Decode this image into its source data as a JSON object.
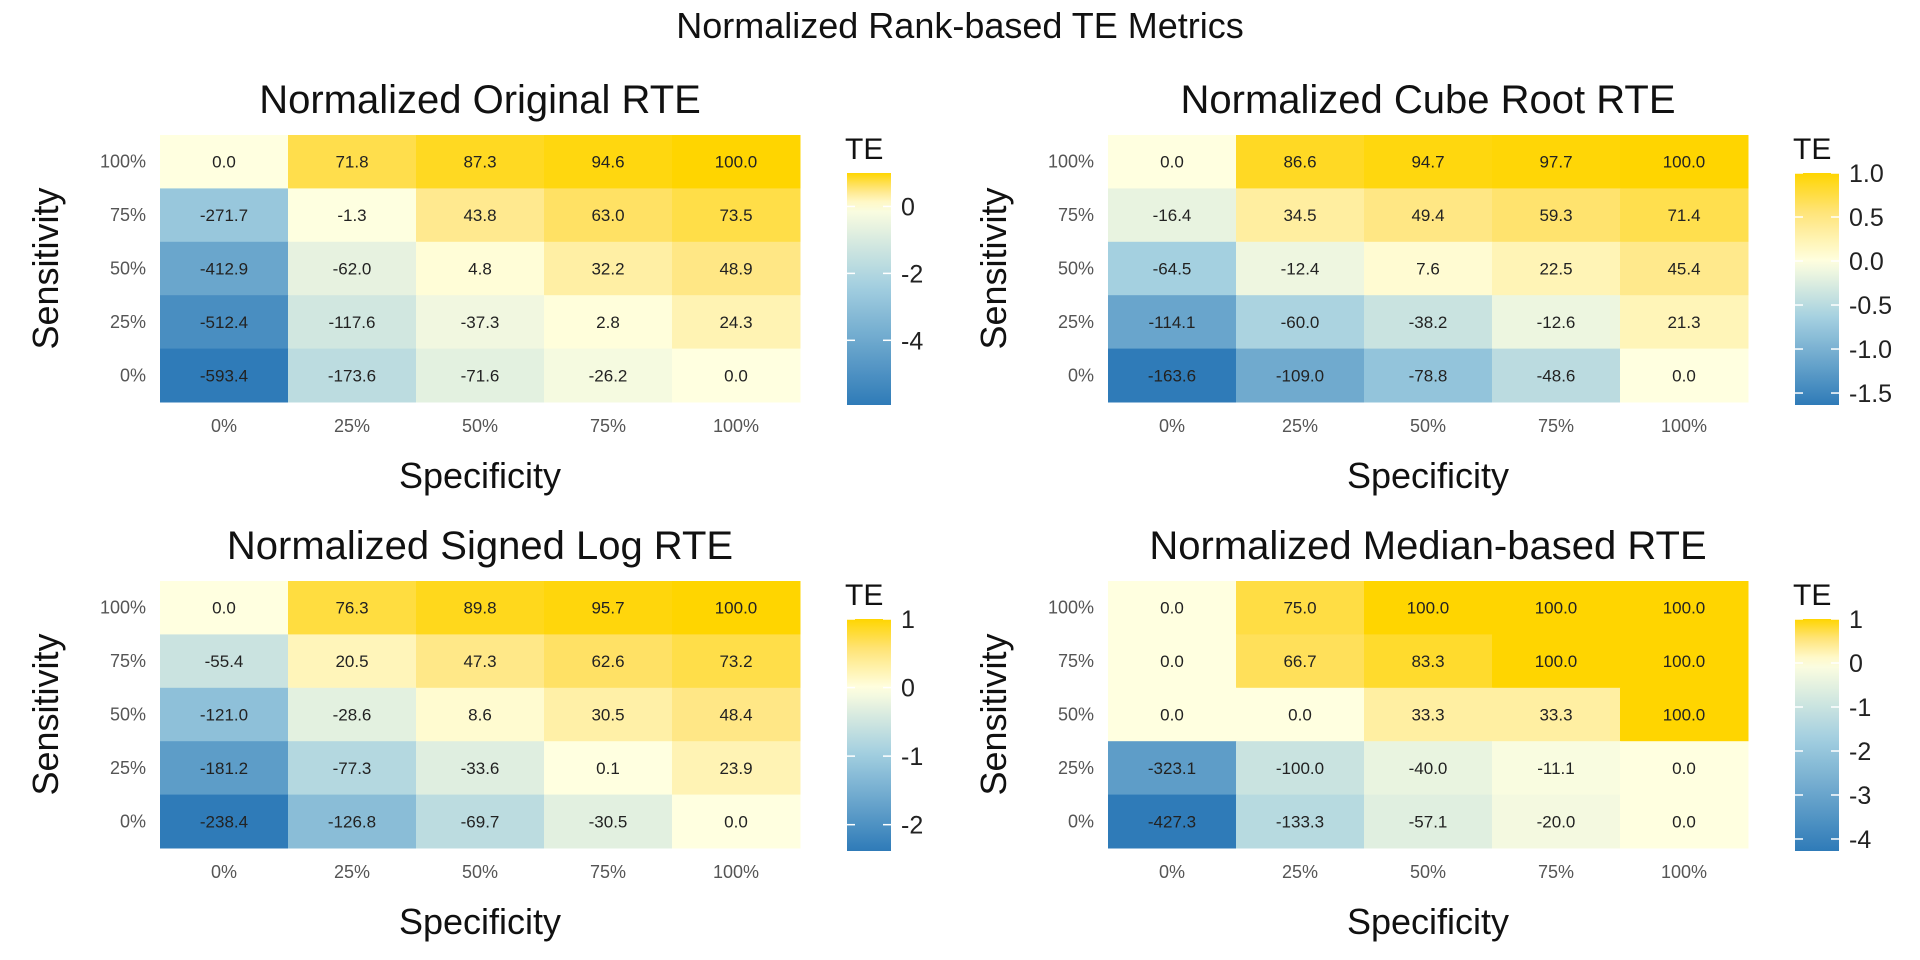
{
  "figure": {
    "title": "Normalized Rank-based TE Metrics"
  },
  "colors": {
    "low": "#2f7bb8",
    "lowmid": "#a3cfe0",
    "mid": "#ffffe0",
    "highmid": "#ffe47a",
    "high": "#ffd500",
    "text": "#222222",
    "tick": "#555555"
  },
  "chart_data": [
    {
      "type": "heatmap",
      "title": "Normalized Original RTE",
      "xlabel": "Specificity",
      "ylabel": "Sensitivity",
      "x_categories": [
        "0%",
        "25%",
        "50%",
        "75%",
        "100%"
      ],
      "y_categories": [
        "100%",
        "75%",
        "50%",
        "25%",
        "0%"
      ],
      "values": [
        [
          0.0,
          71.8,
          87.3,
          94.6,
          100.0
        ],
        [
          -271.7,
          -1.3,
          43.8,
          63.0,
          73.5
        ],
        [
          -412.9,
          -62.0,
          4.8,
          32.2,
          48.9
        ],
        [
          -512.4,
          -117.6,
          -37.3,
          2.8,
          24.3
        ],
        [
          -593.4,
          -173.6,
          -71.6,
          -26.2,
          0.0
        ]
      ],
      "value_labels": [
        [
          "0.0",
          "71.8",
          "87.3",
          "94.6",
          "100.0"
        ],
        [
          "-271.7",
          "-1.3",
          "43.8",
          "63.0",
          "73.5"
        ],
        [
          "-412.9",
          "-62.0",
          "4.8",
          "32.2",
          "48.9"
        ],
        [
          "-512.4",
          "-117.6",
          "-37.3",
          "2.8",
          "24.3"
        ],
        [
          "-593.4",
          "-173.6",
          "-71.6",
          "-26.2",
          "0.0"
        ]
      ],
      "legend": {
        "title": "TE",
        "range": [
          -5.934,
          1.0
        ],
        "ticks": [
          0,
          -2,
          -4
        ],
        "tick_labels": [
          "0",
          "-2",
          "-4"
        ]
      }
    },
    {
      "type": "heatmap",
      "title": "Normalized Cube Root RTE",
      "xlabel": "Specificity",
      "ylabel": "Sensitivity",
      "x_categories": [
        "0%",
        "25%",
        "50%",
        "75%",
        "100%"
      ],
      "y_categories": [
        "100%",
        "75%",
        "50%",
        "25%",
        "0%"
      ],
      "values": [
        [
          0.0,
          86.6,
          94.7,
          97.7,
          100.0
        ],
        [
          -16.4,
          34.5,
          49.4,
          59.3,
          71.4
        ],
        [
          -64.5,
          -12.4,
          7.6,
          22.5,
          45.4
        ],
        [
          -114.1,
          -60.0,
          -38.2,
          -12.6,
          21.3
        ],
        [
          -163.6,
          -109.0,
          -78.8,
          -48.6,
          0.0
        ]
      ],
      "value_labels": [
        [
          "0.0",
          "86.6",
          "94.7",
          "97.7",
          "100.0"
        ],
        [
          "-16.4",
          "34.5",
          "49.4",
          "59.3",
          "71.4"
        ],
        [
          "-64.5",
          "-12.4",
          "7.6",
          "22.5",
          "45.4"
        ],
        [
          "-114.1",
          "-60.0",
          "-38.2",
          "-12.6",
          "21.3"
        ],
        [
          "-163.6",
          "-109.0",
          "-78.8",
          "-48.6",
          "0.0"
        ]
      ],
      "legend": {
        "title": "TE",
        "range": [
          -1.636,
          1.0
        ],
        "ticks": [
          1.0,
          0.5,
          0.0,
          -0.5,
          -1.0,
          -1.5
        ],
        "tick_labels": [
          "1.0",
          "0.5",
          "0.0",
          "-0.5",
          "-1.0",
          "-1.5"
        ]
      }
    },
    {
      "type": "heatmap",
      "title": "Normalized Signed Log RTE",
      "xlabel": "Specificity",
      "ylabel": "Sensitivity",
      "x_categories": [
        "0%",
        "25%",
        "50%",
        "75%",
        "100%"
      ],
      "y_categories": [
        "100%",
        "75%",
        "50%",
        "25%",
        "0%"
      ],
      "values": [
        [
          0.0,
          76.3,
          89.8,
          95.7,
          100.0
        ],
        [
          -55.4,
          20.5,
          47.3,
          62.6,
          73.2
        ],
        [
          -121.0,
          -28.6,
          8.6,
          30.5,
          48.4
        ],
        [
          -181.2,
          -77.3,
          -33.6,
          0.1,
          23.9
        ],
        [
          -238.4,
          -126.8,
          -69.7,
          -30.5,
          0.0
        ]
      ],
      "value_labels": [
        [
          "0.0",
          "76.3",
          "89.8",
          "95.7",
          "100.0"
        ],
        [
          "-55.4",
          "20.5",
          "47.3",
          "62.6",
          "73.2"
        ],
        [
          "-121.0",
          "-28.6",
          "8.6",
          "30.5",
          "48.4"
        ],
        [
          "-181.2",
          "-77.3",
          "-33.6",
          "0.1",
          "23.9"
        ],
        [
          "-238.4",
          "-126.8",
          "-69.7",
          "-30.5",
          "0.0"
        ]
      ],
      "legend": {
        "title": "TE",
        "range": [
          -2.384,
          1.0
        ],
        "ticks": [
          1,
          0,
          -1,
          -2
        ],
        "tick_labels": [
          "1",
          "0",
          "-1",
          "-2"
        ]
      }
    },
    {
      "type": "heatmap",
      "title": "Normalized Median-based RTE",
      "xlabel": "Specificity",
      "ylabel": "Sensitivity",
      "x_categories": [
        "0%",
        "25%",
        "50%",
        "75%",
        "100%"
      ],
      "y_categories": [
        "100%",
        "75%",
        "50%",
        "25%",
        "0%"
      ],
      "values": [
        [
          0.0,
          75.0,
          100.0,
          100.0,
          100.0
        ],
        [
          0.0,
          66.7,
          83.3,
          100.0,
          100.0
        ],
        [
          0.0,
          0.0,
          33.3,
          33.3,
          100.0
        ],
        [
          -323.1,
          -100.0,
          -40.0,
          -11.1,
          0.0
        ],
        [
          -427.3,
          -133.3,
          -57.1,
          -20.0,
          0.0
        ]
      ],
      "value_labels": [
        [
          "0.0",
          "75.0",
          "100.0",
          "100.0",
          "100.0"
        ],
        [
          "0.0",
          "66.7",
          "83.3",
          "100.0",
          "100.0"
        ],
        [
          "0.0",
          "0.0",
          "33.3",
          "33.3",
          "100.0"
        ],
        [
          "-323.1",
          "-100.0",
          "-40.0",
          "-11.1",
          "0.0"
        ],
        [
          "-427.3",
          "-133.3",
          "-57.1",
          "-20.0",
          "0.0"
        ]
      ],
      "legend": {
        "title": "TE",
        "range": [
          -4.273,
          1.0
        ],
        "ticks": [
          1,
          0,
          -1,
          -2,
          -3,
          -4
        ],
        "tick_labels": [
          "1",
          "0",
          "-1",
          "-2",
          "-3",
          "-4"
        ]
      }
    }
  ]
}
